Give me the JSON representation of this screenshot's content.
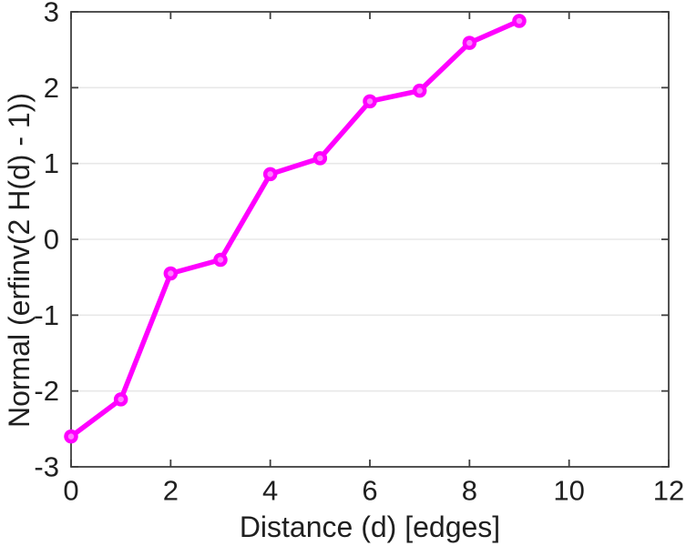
{
  "figure": {
    "background": "#ffffff"
  },
  "chart_data": {
    "type": "line",
    "title": "",
    "xlabel": "Distance (d) [edges]",
    "ylabel": "Normal (erfinv(2 H(d) - 1))",
    "x": [
      0,
      1,
      2,
      3,
      4,
      5,
      6,
      7,
      8,
      9
    ],
    "y": [
      -2.6,
      -2.11,
      -0.45,
      -0.27,
      0.86,
      1.07,
      1.82,
      1.96,
      2.59,
      2.88
    ],
    "xlim": [
      0,
      12
    ],
    "ylim": [
      -3,
      3
    ],
    "xticks": [
      0,
      2,
      4,
      6,
      8,
      10,
      12
    ],
    "yticks": [
      -3,
      -2,
      -1,
      0,
      1,
      2,
      3
    ],
    "grid": "horizontal-only",
    "legend": "none",
    "line_color": "#FF00FF",
    "marker": "circle",
    "marker_face_color": "#FF7DFF",
    "marker_edge_color": "#FF00FF",
    "axis_color": "#3f3f3f",
    "grid_color": "#e8e8e8",
    "tick_label_color": "#1f1f1f"
  }
}
